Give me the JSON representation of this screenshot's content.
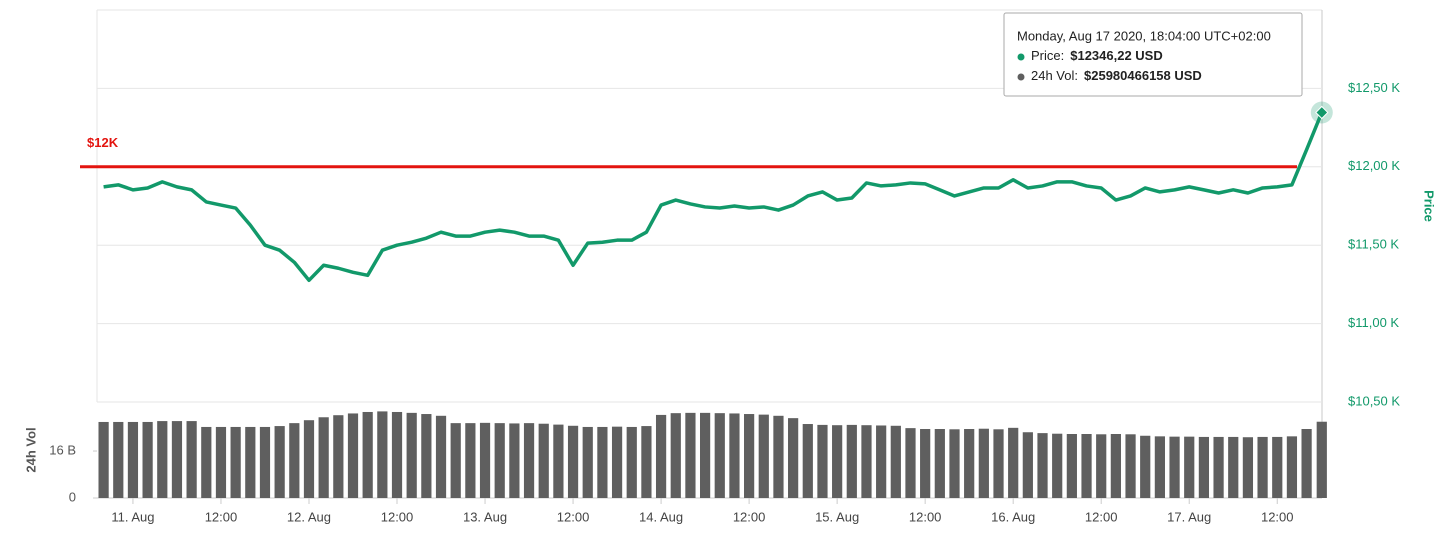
{
  "chart_data": {
    "type": "line",
    "xlim": [
      -4.9,
      162.1
    ],
    "xticks": [
      {
        "value": 0,
        "label": "11. Aug"
      },
      {
        "value": 12,
        "label": "12:00"
      },
      {
        "value": 24,
        "label": "12. Aug"
      },
      {
        "value": 36,
        "label": "12:00"
      },
      {
        "value": 48,
        "label": "13. Aug"
      },
      {
        "value": 60,
        "label": "12:00"
      },
      {
        "value": 72,
        "label": "14. Aug"
      },
      {
        "value": 84,
        "label": "12:00"
      },
      {
        "value": 96,
        "label": "15. Aug"
      },
      {
        "value": 108,
        "label": "12:00"
      },
      {
        "value": 120,
        "label": "16. Aug"
      },
      {
        "value": 132,
        "label": "12:00"
      },
      {
        "value": 144,
        "label": "17. Aug"
      },
      {
        "value": 156,
        "label": "12:00"
      }
    ],
    "ylabel": "Price",
    "ylim": [
      10500,
      13000
    ],
    "yticks": [
      {
        "value": 10500,
        "label": "$10,50 K"
      },
      {
        "value": 11000,
        "label": "$11,00 K"
      },
      {
        "value": 11500,
        "label": "$11,50 K"
      },
      {
        "value": 12000,
        "label": "$12,00 K"
      },
      {
        "value": 12500,
        "label": "$12,50 K"
      }
    ],
    "y2label": "24h Vol",
    "y2lim": [
      0,
      32.7
    ],
    "y2ticks": [
      0,
      {
        "value": 16,
        "label": "16 B"
      }
    ],
    "grid": true,
    "x": [
      -4,
      -2,
      0,
      2,
      4,
      6,
      8,
      10,
      12,
      14,
      16,
      18,
      20,
      22,
      24,
      26,
      28,
      30,
      32,
      34,
      36,
      38,
      40,
      42,
      44,
      46,
      48,
      50,
      52,
      54,
      56,
      58,
      60,
      62,
      64,
      66,
      68,
      70,
      72,
      74,
      76,
      78,
      80,
      82,
      84,
      86,
      88,
      90,
      92,
      94,
      96,
      98,
      100,
      102,
      104,
      106,
      108,
      110,
      112,
      114,
      116,
      118,
      120,
      122,
      124,
      126,
      128,
      130,
      132,
      134,
      136,
      138,
      140,
      142,
      144,
      146,
      148,
      150,
      152,
      154,
      156,
      158,
      160,
      162.07
    ],
    "series": [
      {
        "name": "Price",
        "type": "line",
        "color": "#12996a",
        "values": [
          11872,
          11885,
          11853,
          11865,
          11904,
          11872,
          11853,
          11776,
          11756,
          11737,
          11628,
          11500,
          11468,
          11391,
          11276,
          11372,
          11353,
          11327,
          11308,
          11468,
          11500,
          11519,
          11545,
          11583,
          11558,
          11558,
          11583,
          11596,
          11583,
          11558,
          11558,
          11532,
          11372,
          11513,
          11519,
          11532,
          11532,
          11583,
          11756,
          11788,
          11763,
          11744,
          11737,
          11750,
          11737,
          11744,
          11724,
          11756,
          11814,
          11840,
          11788,
          11801,
          11897,
          11878,
          11885,
          11897,
          11891,
          11853,
          11814,
          11840,
          11865,
          11865,
          11917,
          11865,
          11878,
          11904,
          11904,
          11878,
          11865,
          11788,
          11814,
          11865,
          11840,
          11853,
          11872,
          11853,
          11833,
          11853,
          11833,
          11865,
          11872,
          11885,
          12109,
          12346.22
        ]
      },
      {
        "name": "24h Vol",
        "type": "bar",
        "axis": "y2",
        "color": "#5f5f5f",
        "values": [
          25.9,
          25.9,
          25.9,
          25.9,
          26.2,
          26.2,
          26.2,
          24.2,
          24.2,
          24.2,
          24.2,
          24.2,
          24.5,
          25.5,
          26.5,
          27.5,
          28.2,
          28.8,
          29.3,
          29.5,
          29.3,
          29.0,
          28.6,
          28.0,
          25.5,
          25.5,
          25.6,
          25.5,
          25.4,
          25.5,
          25.3,
          25.0,
          24.6,
          24.2,
          24.2,
          24.3,
          24.2,
          24.5,
          28.3,
          28.9,
          29.0,
          29.0,
          28.9,
          28.8,
          28.6,
          28.4,
          28.0,
          27.2,
          25.2,
          24.9,
          24.8,
          24.9,
          24.8,
          24.7,
          24.6,
          23.8,
          23.5,
          23.5,
          23.4,
          23.5,
          23.6,
          23.4,
          23.9,
          22.4,
          22.1,
          21.9,
          21.8,
          21.8,
          21.7,
          21.8,
          21.7,
          21.2,
          21.0,
          20.9,
          20.9,
          20.8,
          20.8,
          20.8,
          20.7,
          20.8,
          20.8,
          21.0,
          23.5,
          25.98
        ]
      }
    ],
    "annotation": {
      "text": "$12K",
      "value": 12000,
      "color": "#e3140f"
    },
    "tooltip": {
      "title": "Monday, Aug 17 2020, 18:04:00 UTC+02:00",
      "rows": [
        {
          "label": "Price:",
          "value": "$12346,22 USD"
        },
        {
          "label": "24h Vol:",
          "value": "$25980466158 USD"
        }
      ]
    }
  }
}
